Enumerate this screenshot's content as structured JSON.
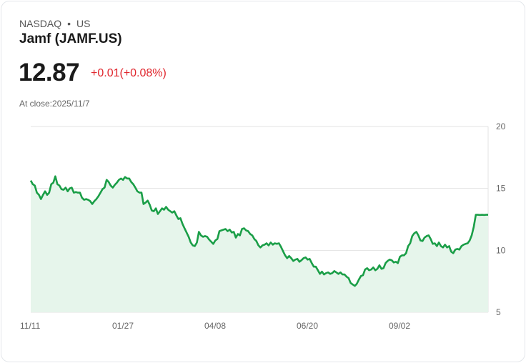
{
  "header": {
    "exchange": "NASDAQ",
    "dot": "•",
    "region": "US",
    "title": "Jamf (JAMF.US)",
    "price": "12.87",
    "change": "+0.01(+0.08%)",
    "close_label": "At close:2025/11/7"
  },
  "colors": {
    "line": "#1a9e47",
    "fill": "#e6f5eb",
    "down": "#e0262d",
    "grid": "#e3e3e3"
  },
  "chart_data": {
    "type": "area",
    "title": "Jamf (JAMF.US)",
    "xlabel": "",
    "ylabel": "",
    "ylim": [
      5,
      20
    ],
    "y_ticks": [
      "20",
      "15",
      "10",
      "5"
    ],
    "x_ticks": [
      "11/11",
      "01/27",
      "04/08",
      "06/20",
      "09/02"
    ],
    "grid": true,
    "values": [
      15.63,
      15.34,
      15.23,
      14.66,
      14.48,
      14.14,
      14.48,
      14.77,
      14.48,
      14.66,
      15.34,
      15.46,
      15.98,
      15.34,
      15.23,
      14.94,
      14.89,
      15.06,
      14.77,
      15.0,
      15.06,
      14.66,
      14.71,
      14.66,
      14.66,
      14.25,
      14.08,
      14.14,
      14.08,
      13.97,
      13.74,
      13.97,
      14.14,
      14.37,
      14.66,
      14.94,
      15.06,
      15.69,
      15.52,
      15.23,
      15.06,
      15.29,
      15.46,
      15.69,
      15.8,
      15.69,
      15.92,
      15.8,
      15.8,
      15.52,
      15.34,
      15.06,
      14.77,
      14.66,
      14.66,
      13.74,
      13.85,
      14.02,
      13.68,
      13.22,
      13.16,
      13.39,
      12.93,
      13.16,
      13.39,
      13.28,
      13.51,
      13.28,
      13.16,
      13.05,
      13.16,
      12.82,
      12.53,
      12.59,
      12.13,
      11.78,
      11.44,
      11.09,
      10.63,
      10.4,
      10.34,
      10.63,
      11.49,
      11.21,
      11.09,
      11.15,
      11.09,
      10.86,
      10.69,
      10.52,
      10.8,
      10.92,
      11.55,
      11.61,
      11.67,
      11.72,
      11.55,
      11.67,
      11.44,
      11.49,
      11.03,
      11.32,
      11.21,
      11.72,
      11.78,
      11.61,
      11.55,
      11.32,
      11.21,
      10.92,
      10.75,
      10.4,
      10.23,
      10.4,
      10.46,
      10.57,
      10.4,
      10.63,
      10.46,
      10.57,
      10.52,
      10.57,
      10.29,
      9.94,
      9.6,
      9.37,
      9.54,
      9.37,
      9.14,
      9.25,
      9.31,
      9.08,
      9.2,
      9.37,
      9.43,
      9.25,
      9.31,
      8.97,
      8.68,
      8.68,
      8.39,
      8.1,
      8.28,
      8.05,
      8.16,
      8.22,
      8.1,
      8.16,
      8.33,
      8.22,
      8.1,
      8.22,
      8.05,
      8.05,
      7.87,
      7.76,
      7.36,
      7.24,
      7.13,
      7.3,
      7.64,
      7.93,
      7.99,
      8.45,
      8.56,
      8.39,
      8.45,
      8.62,
      8.39,
      8.51,
      8.79,
      8.51,
      8.56,
      8.97,
      9.14,
      9.25,
      9.2,
      9.02,
      9.08,
      8.97,
      9.48,
      9.6,
      9.6,
      9.77,
      10.34,
      10.57,
      11.15,
      11.38,
      11.49,
      11.21,
      10.8,
      10.75,
      11.03,
      11.15,
      11.21,
      10.92,
      10.52,
      10.57,
      10.34,
      10.63,
      10.34,
      10.23,
      10.46,
      10.23,
      10.34,
      9.89,
      9.77,
      10.06,
      10.11,
      10.06,
      10.34,
      10.46,
      10.52,
      10.57,
      10.8,
      11.21,
      11.9,
      12.87,
      12.87,
      12.86,
      12.87,
      12.86,
      12.87,
      12.87
    ]
  }
}
